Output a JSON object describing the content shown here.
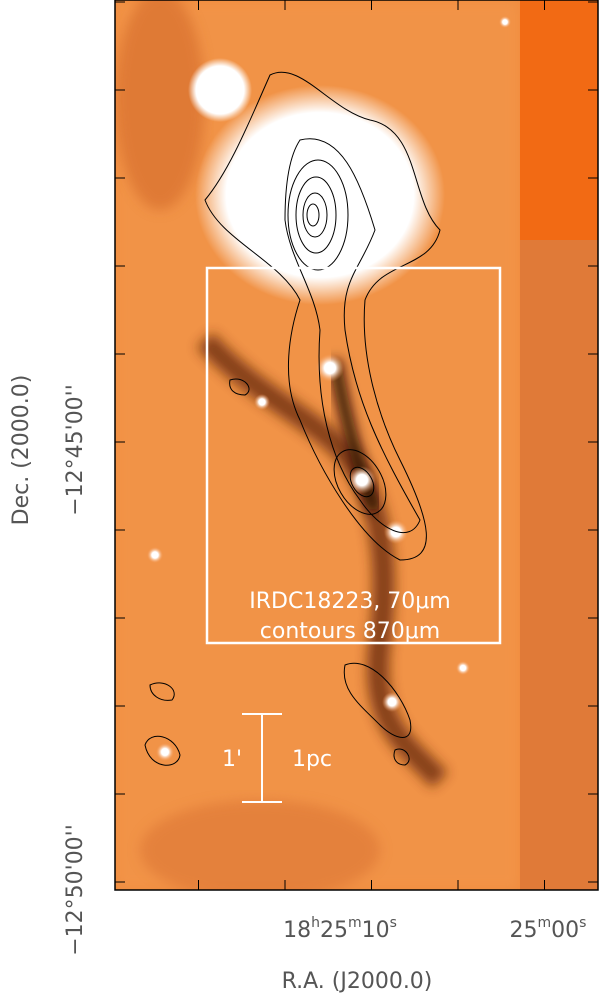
{
  "figure": {
    "annotation_lines": [
      "IRDC18223, 70μm",
      "contours 870μm"
    ],
    "x_axis_label": "R.A. (J2000.0)",
    "y_axis_label": "Dec. (2000.0)",
    "x_ticks": [
      [
        "18",
        "h",
        "25",
        "m",
        "10",
        "s"
      ],
      [
        "25",
        "m",
        "00",
        "s"
      ]
    ],
    "y_ticks": [
      "−12°45'00''",
      "−12°50'00''"
    ],
    "scale_bar": {
      "angular": "1'",
      "physical": "1pc"
    }
  }
}
